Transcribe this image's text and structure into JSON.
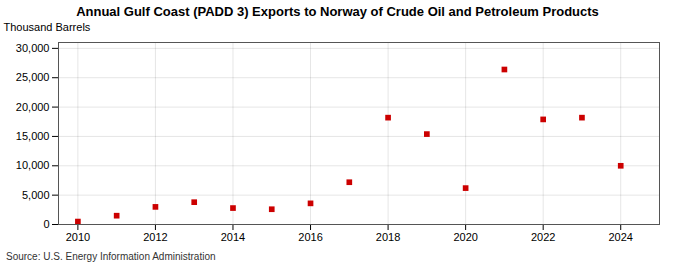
{
  "chart_data": {
    "type": "scatter",
    "title": "Annual Gulf Coast (PADD 3) Exports to Norway of Crude Oil and Petroleum Products",
    "ylabel": "Thousand Barrels",
    "source": "Source: U.S. Energy Information Administration",
    "x": [
      2010,
      2011,
      2012,
      2013,
      2014,
      2015,
      2016,
      2017,
      2018,
      2019,
      2020,
      2021,
      2022,
      2023,
      2024
    ],
    "values": [
      500,
      1500,
      3000,
      3800,
      2800,
      2600,
      3600,
      7200,
      18200,
      15400,
      6200,
      26400,
      17900,
      18200,
      10000
    ],
    "color": "#cc0000",
    "marker": "square",
    "xlim": [
      2009.5,
      2025.0
    ],
    "xticks": [
      2010,
      2012,
      2014,
      2016,
      2018,
      2020,
      2022,
      2024
    ],
    "ylim": [
      0,
      31000
    ],
    "yticks": [
      0,
      {
        "value": 5000,
        "label": "5,000"
      },
      {
        "value": 10000,
        "label": "10,000"
      },
      {
        "value": 15000,
        "label": "15,000"
      },
      {
        "value": 20000,
        "label": "20,000"
      },
      {
        "value": 25000,
        "label": "25,000"
      },
      {
        "value": 30000,
        "label": "30,000"
      }
    ],
    "grid": true
  }
}
